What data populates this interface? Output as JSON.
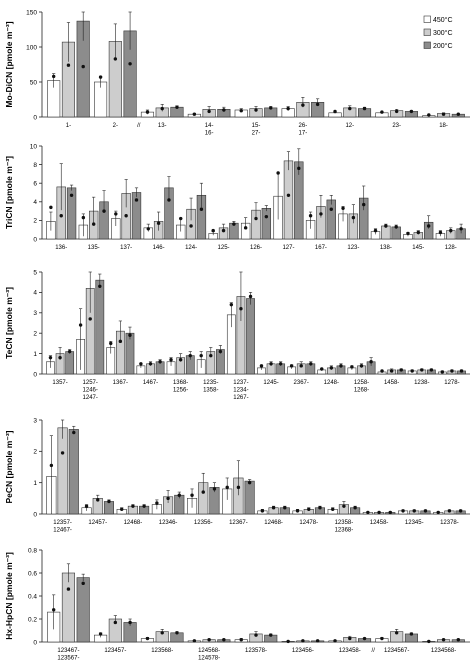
{
  "colors": {
    "t450": "#ffffff",
    "t300": "#cdcdcd",
    "t200": "#8c8c8c",
    "stroke": "#333333",
    "dot": "#111111"
  },
  "legend": [
    {
      "label": "450°C",
      "color": "#ffffff"
    },
    {
      "label": "300°C",
      "color": "#cdcdcd"
    },
    {
      "label": "200°C",
      "color": "#8c8c8c"
    }
  ],
  "chart_data": [
    {
      "type": "bar",
      "ylabel": "Mo-DiCN [pmole m⁻³]",
      "ylim": [
        0,
        150
      ],
      "yticks": [
        0,
        50,
        100,
        150
      ],
      "grid": false,
      "legend_position": "top-right",
      "series_names": [
        "450°C",
        "300°C",
        "200°C"
      ],
      "categories": [
        "1-",
        "2-",
        "13-",
        "14-16-",
        "15-27-",
        "26-17-",
        "12-",
        "23-",
        "18-"
      ],
      "category_labels": [
        [
          "1-"
        ],
        [
          "2-"
        ],
        [
          "13-"
        ],
        [
          "14-",
          "16-"
        ],
        [
          "15-",
          "27-"
        ],
        [
          "26-",
          "17-"
        ],
        [
          "12-"
        ],
        [
          "23-"
        ],
        [
          "18-"
        ]
      ],
      "axis_break_after": 1,
      "values": [
        [
          52,
          107,
          137
        ],
        [
          50,
          108,
          123
        ],
        [
          7,
          13,
          14
        ],
        [
          4,
          11,
          11
        ],
        [
          10,
          12,
          13
        ],
        [
          12,
          21,
          21
        ],
        [
          6,
          13,
          12
        ],
        [
          6,
          9,
          8
        ],
        [
          2,
          5,
          4
        ]
      ],
      "errors": [
        [
          10,
          28,
          28
        ],
        [
          8,
          25,
          27
        ],
        [
          3,
          5,
          2
        ],
        [
          1,
          4,
          3
        ],
        [
          2,
          3,
          2
        ],
        [
          3,
          7,
          5
        ],
        [
          1,
          3,
          2
        ],
        [
          1,
          2,
          1
        ],
        [
          0.5,
          1,
          0.5
        ]
      ],
      "points": [
        [
          58,
          74,
          72
        ],
        [
          57,
          83,
          76
        ],
        [
          7,
          12,
          14
        ],
        [
          4,
          8,
          10
        ],
        [
          9,
          10,
          13
        ],
        [
          12,
          17,
          18
        ],
        [
          8,
          12,
          12
        ],
        [
          7,
          8,
          8
        ],
        [
          3,
          4,
          4
        ]
      ]
    },
    {
      "type": "bar",
      "ylabel": "TriCN [pmole m⁻³]",
      "ylim": [
        0,
        10
      ],
      "yticks": [
        0,
        2,
        4,
        6,
        8,
        10
      ],
      "grid": false,
      "series_names": [
        "450°C",
        "300°C",
        "200°C"
      ],
      "categories": [
        "136-",
        "135-",
        "137-",
        "146-",
        "124-",
        "125-",
        "126-",
        "127-",
        "167-",
        "123-",
        "138-",
        "145-",
        "128-"
      ],
      "category_labels": [
        [
          "136-"
        ],
        [
          "135-"
        ],
        [
          "137-"
        ],
        [
          "146-"
        ],
        [
          "124-"
        ],
        [
          "125-"
        ],
        [
          "126-"
        ],
        [
          "127-"
        ],
        [
          "167-"
        ],
        [
          "123-"
        ],
        [
          "138-"
        ],
        [
          "145-"
        ],
        [
          "128-"
        ]
      ],
      "axis_break_after": null,
      "values": [
        [
          1.9,
          5.6,
          5.5
        ],
        [
          1.5,
          3.0,
          4.0
        ],
        [
          2.2,
          4.9,
          5.0
        ],
        [
          1.2,
          1.9,
          5.5
        ],
        [
          1.5,
          3.2,
          4.7
        ],
        [
          0.6,
          1.2,
          1.7
        ],
        [
          1.7,
          3.1,
          3.3
        ],
        [
          4.6,
          8.4,
          8.3
        ],
        [
          2.0,
          3.5,
          4.2
        ],
        [
          2.7,
          2.7,
          4.4
        ],
        [
          0.8,
          1.4,
          1.3
        ],
        [
          0.5,
          0.7,
          1.8
        ],
        [
          0.6,
          0.9,
          1.1
        ]
      ],
      "errors": [
        [
          1.0,
          2.5,
          0.3
        ],
        [
          1.2,
          1.5,
          1.2
        ],
        [
          0.8,
          1.5,
          0.5
        ],
        [
          0.4,
          1.0,
          1.2
        ],
        [
          0.7,
          1.2,
          1.3
        ],
        [
          0.2,
          0.4,
          0.2
        ],
        [
          0.6,
          0.8,
          0.3
        ],
        [
          2.5,
          1.0,
          1.4
        ],
        [
          0.9,
          1.2,
          0.5
        ],
        [
          0.8,
          1.0,
          1.3
        ],
        [
          0.3,
          0.2,
          0.2
        ],
        [
          0.2,
          0.2,
          0.7
        ],
        [
          0.3,
          0.3,
          0.5
        ]
      ],
      "points": [
        [
          3.4,
          2.5,
          4.7
        ],
        [
          2.3,
          1.6,
          3.0
        ],
        [
          2.7,
          2.5,
          4.2
        ],
        [
          1.1,
          1.7,
          4.2
        ],
        [
          2.2,
          1.4,
          3.2
        ],
        [
          0.9,
          0.9,
          1.6
        ],
        [
          1.2,
          2.2,
          2.4
        ],
        [
          7.1,
          4.7,
          7.6
        ],
        [
          2.5,
          2.7,
          3.2
        ],
        [
          3.3,
          2.3,
          3.7
        ],
        [
          0.9,
          1.4,
          1.3
        ],
        [
          0.6,
          0.7,
          1.4
        ],
        [
          0.7,
          0.9,
          1.1
        ]
      ]
    },
    {
      "type": "bar",
      "ylabel": "TeCN [pmole m⁻³]",
      "ylim": [
        0,
        5
      ],
      "yticks": [
        0,
        1,
        2,
        3,
        4,
        5
      ],
      "grid": false,
      "series_names": [
        "450°C",
        "300°C",
        "200°C"
      ],
      "categories": [
        "1357-",
        "1257-1246-1247-",
        "1367-",
        "1467-",
        "1368-1256-",
        "1235-1358-",
        "1237-1234-1267-",
        "1245-",
        "2367-",
        "1248-",
        "1258-1268-",
        "1458-",
        "1238-",
        "1278-"
      ],
      "category_labels": [
        [
          "1357-"
        ],
        [
          "1257-",
          "1246-",
          "1247-"
        ],
        [
          "1367-"
        ],
        [
          "1467-"
        ],
        [
          "1368-",
          "1256-"
        ],
        [
          "1235-",
          "1358-"
        ],
        [
          "1237-",
          "1234-",
          "1267-"
        ],
        [
          "1245-"
        ],
        [
          "2367-"
        ],
        [
          "1248-"
        ],
        [
          "1258-",
          "1268-"
        ],
        [
          "1458-"
        ],
        [
          "1238-"
        ],
        [
          "1278-"
        ]
      ],
      "axis_break_after": null,
      "values": [
        [
          0.6,
          1.0,
          1.1
        ],
        [
          1.7,
          4.2,
          4.6
        ],
        [
          1.3,
          2.1,
          2.0
        ],
        [
          0.4,
          0.5,
          0.6
        ],
        [
          0.6,
          0.8,
          0.9
        ],
        [
          0.7,
          1.1,
          1.2
        ],
        [
          2.9,
          3.8,
          3.7
        ],
        [
          0.3,
          0.5,
          0.5
        ],
        [
          0.35,
          0.5,
          0.5
        ],
        [
          0.2,
          0.3,
          0.4
        ],
        [
          0.3,
          0.4,
          0.6
        ],
        [
          0.1,
          0.2,
          0.2
        ],
        [
          0.15,
          0.2,
          0.2
        ],
        [
          0.1,
          0.15,
          0.15
        ]
      ],
      "errors": [
        [
          0.3,
          0.3,
          0.1
        ],
        [
          1.5,
          1.2,
          0.3
        ],
        [
          0.3,
          0.5,
          0.3
        ],
        [
          0.1,
          0.1,
          0.1
        ],
        [
          0.2,
          0.2,
          0.2
        ],
        [
          0.4,
          0.2,
          0.2
        ],
        [
          0.6,
          1.2,
          0.3
        ],
        [
          0.1,
          0.1,
          0.1
        ],
        [
          0.1,
          0.1,
          0.1
        ],
        [
          0.05,
          0.1,
          0.1
        ],
        [
          0.1,
          0.1,
          0.2
        ],
        [
          0.05,
          0.05,
          0.05
        ],
        [
          0.05,
          0.05,
          0.05
        ],
        [
          0.05,
          0.05,
          0.05
        ]
      ],
      "points": [
        [
          0.8,
          0.8,
          1.1
        ],
        [
          2.4,
          2.7,
          4.3
        ],
        [
          1.5,
          1.6,
          1.9
        ],
        [
          0.5,
          0.5,
          0.6
        ],
        [
          0.7,
          0.7,
          0.9
        ],
        [
          0.9,
          0.9,
          1.1
        ],
        [
          3.4,
          3.2,
          3.8
        ],
        [
          0.4,
          0.5,
          0.5
        ],
        [
          0.4,
          0.4,
          0.5
        ],
        [
          0.25,
          0.3,
          0.4
        ],
        [
          0.35,
          0.4,
          0.6
        ],
        [
          0.15,
          0.15,
          0.2
        ],
        [
          0.15,
          0.2,
          0.2
        ],
        [
          0.1,
          0.15,
          0.15
        ]
      ]
    },
    {
      "type": "bar",
      "ylabel": "PeCN [pmole m⁻³]",
      "ylim": [
        0,
        3
      ],
      "yticks": [
        0,
        1,
        2,
        3
      ],
      "grid": false,
      "series_names": [
        "450°C",
        "300°C",
        "200°C"
      ],
      "categories": [
        "12357-12467-",
        "12457-",
        "12468-",
        "12346-",
        "12356-",
        "12367-",
        "12468-",
        "12478-",
        "12358-12368-",
        "12458-",
        "12345-",
        "12378-"
      ],
      "category_labels": [
        [
          "12357-",
          "12467-"
        ],
        [
          "12457-"
        ],
        [
          "12468-"
        ],
        [
          "12346-"
        ],
        [
          "12356-"
        ],
        [
          "12367-"
        ],
        [
          "12468-"
        ],
        [
          "12478-"
        ],
        [
          "12358-",
          "12368-"
        ],
        [
          "12458-"
        ],
        [
          "12345-"
        ],
        [
          "12378-"
        ]
      ],
      "axis_break_after": null,
      "values": [
        [
          1.2,
          2.75,
          2.7
        ],
        [
          0.2,
          0.5,
          0.4
        ],
        [
          0.15,
          0.25,
          0.25
        ],
        [
          0.3,
          0.55,
          0.6
        ],
        [
          0.5,
          1.0,
          0.85
        ],
        [
          0.8,
          1.15,
          1.05
        ],
        [
          0.1,
          0.2,
          0.2
        ],
        [
          0.1,
          0.15,
          0.2
        ],
        [
          0.15,
          0.3,
          0.2
        ],
        [
          0.05,
          0.05,
          0.05
        ],
        [
          0.1,
          0.1,
          0.1
        ],
        [
          0.05,
          0.1,
          0.1
        ]
      ],
      "errors": [
        [
          1.3,
          0.35,
          0.1
        ],
        [
          0.1,
          0.1,
          0.05
        ],
        [
          0.05,
          0.05,
          0.05
        ],
        [
          0.15,
          0.2,
          0.1
        ],
        [
          0.3,
          0.3,
          0.15
        ],
        [
          0.35,
          0.55,
          0.05
        ],
        [
          0.05,
          0.05,
          0.05
        ],
        [
          0.05,
          0.05,
          0.05
        ],
        [
          0.05,
          0.1,
          0.05
        ],
        [
          0.02,
          0.02,
          0.02
        ],
        [
          0.03,
          0.03,
          0.03
        ],
        [
          0.02,
          0.03,
          0.03
        ]
      ],
      "points": [
        [
          1.55,
          1.95,
          2.6
        ],
        [
          0.25,
          0.45,
          0.4
        ],
        [
          0.15,
          0.25,
          0.25
        ],
        [
          0.35,
          0.5,
          0.6
        ],
        [
          0.6,
          0.7,
          0.8
        ],
        [
          0.85,
          0.85,
          1.0
        ],
        [
          0.1,
          0.2,
          0.2
        ],
        [
          0.1,
          0.15,
          0.2
        ],
        [
          0.15,
          0.25,
          0.2
        ],
        [
          0.05,
          0.05,
          0.05
        ],
        [
          0.1,
          0.1,
          0.1
        ],
        [
          0.05,
          0.1,
          0.1
        ]
      ]
    },
    {
      "type": "bar",
      "ylabel": "Hx-HpCN [pmole m⁻³]",
      "ylim": [
        0,
        0.8
      ],
      "yticks": [
        0,
        0.2,
        0.4,
        0.6,
        0.8
      ],
      "grid": false,
      "series_names": [
        "450°C",
        "300°C",
        "200°C"
      ],
      "categories": [
        "123467-123567-",
        "123457-",
        "123568-",
        "124568-124578-",
        "123578-",
        "123456-",
        "123458-",
        "1234567-",
        "1234568-"
      ],
      "category_labels": [
        [
          "123467-",
          "123567-"
        ],
        [
          "123457-"
        ],
        [
          "123568-"
        ],
        [
          "124568-",
          "124578-"
        ],
        [
          "123578-"
        ],
        [
          "123456-"
        ],
        [
          "123458-"
        ],
        [
          "1234567-"
        ],
        [
          "1234568-"
        ]
      ],
      "axis_break_after": 6,
      "values": [
        [
          0.26,
          0.6,
          0.56
        ],
        [
          0.06,
          0.2,
          0.17
        ],
        [
          0.03,
          0.09,
          0.08
        ],
        [
          0.01,
          0.02,
          0.02
        ],
        [
          0.02,
          0.07,
          0.06
        ],
        [
          0.005,
          0.01,
          0.01
        ],
        [
          0.01,
          0.04,
          0.03
        ],
        [
          0.03,
          0.09,
          0.07
        ],
        [
          0.005,
          0.02,
          0.02
        ]
      ],
      "errors": [
        [
          0.15,
          0.08,
          0.03
        ],
        [
          0.02,
          0.03,
          0.03
        ],
        [
          0.01,
          0.02,
          0.01
        ],
        [
          0.005,
          0.005,
          0.005
        ],
        [
          0.01,
          0.02,
          0.01
        ],
        [
          0.003,
          0.003,
          0.003
        ],
        [
          0.005,
          0.01,
          0.005
        ],
        [
          0.01,
          0.02,
          0.01
        ],
        [
          0.003,
          0.005,
          0.005
        ]
      ],
      "points": [
        [
          0.28,
          0.46,
          0.51
        ],
        [
          0.07,
          0.17,
          0.17
        ],
        [
          0.03,
          0.08,
          0.08
        ],
        [
          0.01,
          0.02,
          0.02
        ],
        [
          0.02,
          0.06,
          0.06
        ],
        [
          0.005,
          0.01,
          0.01
        ],
        [
          0.01,
          0.03,
          0.03
        ],
        [
          0.03,
          0.08,
          0.07
        ],
        [
          0.005,
          0.02,
          0.02
        ]
      ]
    }
  ]
}
